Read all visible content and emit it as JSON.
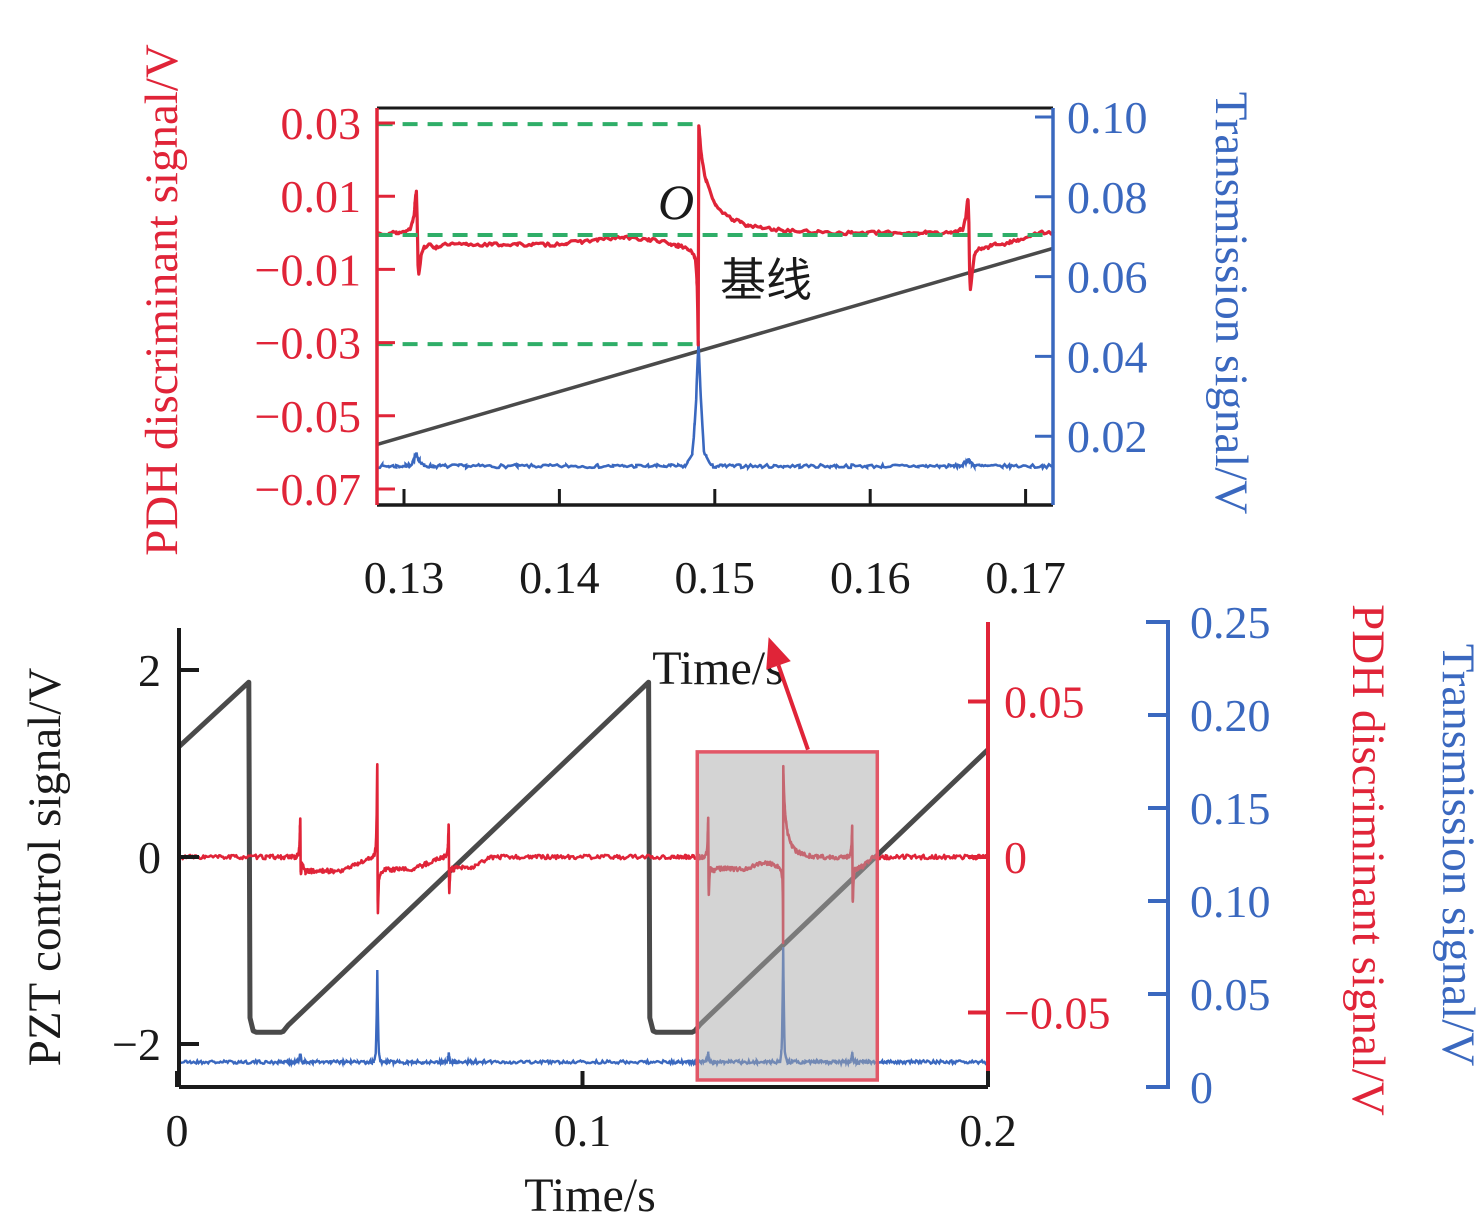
{
  "colors": {
    "red": "#e02438",
    "blue": "#3a68bf",
    "green": "#2fae68",
    "dark": "#1a1a1a",
    "ramp": "#4a4a4a",
    "shade_fill": "#aaaaaa",
    "shade_stroke": "#e25767"
  },
  "chart_data": [
    {
      "id": "zoomed-detail-chart",
      "type": "line",
      "xlabel": "Time/s",
      "xlim": [
        0.1283,
        0.1718
      ],
      "x_ticks": [
        {
          "v": 0.13,
          "label": "0.13"
        },
        {
          "v": 0.14,
          "label": "0.14"
        },
        {
          "v": 0.15,
          "label": "0.15"
        },
        {
          "v": 0.16,
          "label": "0.16"
        },
        {
          "v": 0.17,
          "label": "0.17"
        }
      ],
      "left_axis": {
        "label": "PDH discriminant signal/V",
        "lim": [
          -0.0744,
          0.0341
        ],
        "ticks": [
          {
            "v": 0.03,
            "label": "0.03"
          },
          {
            "v": 0.01,
            "label": "0.01"
          },
          {
            "v": -0.01,
            "label": "−0.01"
          },
          {
            "v": -0.03,
            "label": "−0.03"
          },
          {
            "v": -0.05,
            "label": "−0.05"
          },
          {
            "v": -0.07,
            "label": "−0.07"
          }
        ]
      },
      "right_axis": {
        "label": "Transmission signal/V",
        "lim": [
          0.003,
          0.102
        ],
        "ticks": [
          {
            "v": 0.1,
            "label": "0.10"
          },
          {
            "v": 0.08,
            "label": "0.08"
          },
          {
            "v": 0.06,
            "label": "0.06"
          },
          {
            "v": 0.04,
            "label": "0.04"
          },
          {
            "v": 0.02,
            "label": "0.02"
          }
        ]
      },
      "series": {
        "pdh": {
          "name": "PDH discriminant signal",
          "baseline": 0.0,
          "noise": 0.0005,
          "features": [
            {
              "type": "side",
              "t": 0.1308,
              "up": 0.0115,
              "down": 0.0112,
              "tail": 0.0032,
              "tail_len": 0.016
            },
            {
              "type": "main",
              "t": 0.14895,
              "min": 0.0304,
              "max": 0.0297
            },
            {
              "type": "side",
              "t": 0.1663,
              "up": 0.0093,
              "down": 0.0159,
              "tail": 0.003,
              "tail_len": 0.0045
            }
          ]
        },
        "transmission": {
          "name": "Transmission signal",
          "baseline": 0.0125,
          "noise": 0.00045,
          "peaks": [
            {
              "t": 0.1308,
              "h": 0.003
            },
            {
              "t": 0.14895,
              "h": 0.031
            },
            {
              "t": 0.1663,
              "h": 0.0018
            }
          ]
        },
        "pzt_ramp": {
          "name": "PZT ramp (reference)",
          "points": [
            [
              0.1283,
              -0.0578
            ],
            [
              0.1718,
              -0.0042
            ]
          ]
        }
      },
      "guides": [
        {
          "v": 0.0297,
          "t0": 0.1283,
          "t1": 0.149
        },
        {
          "v": -0.0006,
          "t0": 0.1283,
          "t1": 0.1718
        },
        {
          "v": -0.0304,
          "t0": 0.1283,
          "t1": 0.1491
        }
      ],
      "annotations": [
        {
          "text": "O",
          "role": "zero-crossing-label"
        },
        {
          "text": "基线",
          "role": "baseline-label"
        }
      ]
    },
    {
      "id": "overview-chart",
      "type": "line",
      "xlabel": "Time/s",
      "xlim": [
        0.0005,
        0.2
      ],
      "x_ticks": [
        {
          "v": 0,
          "label": "0"
        },
        {
          "v": 0.1,
          "label": "0.1"
        },
        {
          "v": 0.2,
          "label": "0.2"
        }
      ],
      "left_axis": {
        "label": "PZT control signal/V",
        "lim": [
          -2.46,
          2.45
        ],
        "ticks": [
          {
            "v": 2,
            "label": "2"
          },
          {
            "v": 0,
            "label": "0"
          },
          {
            "v": -2,
            "label": "−2"
          }
        ]
      },
      "right_axis_red": {
        "label": "PDH discriminant signal/V",
        "lim": [
          -0.074,
          0.0756
        ],
        "ticks": [
          {
            "v": 0.05,
            "label": "0.05"
          },
          {
            "v": 0,
            "label": "0"
          },
          {
            "v": -0.05,
            "label": "−0.05"
          }
        ]
      },
      "right_axis_blue": {
        "label": "Transmission signal/V",
        "lim": [
          0,
          0.25
        ],
        "ticks": [
          {
            "v": 0.25,
            "label": "0.25"
          },
          {
            "v": 0.2,
            "label": "0.20"
          },
          {
            "v": 0.15,
            "label": "0.15"
          },
          {
            "v": 0.1,
            "label": "0.10"
          },
          {
            "v": 0.05,
            "label": "0.05"
          },
          {
            "v": 0,
            "label": "0"
          }
        ]
      },
      "series": {
        "pzt": {
          "name": "PZT control signal",
          "points": [
            [
              0.0005,
              1.18
            ],
            [
              0.0177,
              1.87
            ],
            [
              0.018,
              -1.72
            ],
            [
              0.0188,
              -1.86
            ],
            [
              0.0196,
              -1.875
            ],
            [
              0.0256,
              -1.875
            ],
            [
              0.0262,
              -1.865
            ],
            [
              0.0274,
              -1.8
            ],
            [
              0.1163,
              1.87
            ],
            [
              0.1166,
              -1.72
            ],
            [
              0.1174,
              -1.86
            ],
            [
              0.1182,
              -1.875
            ],
            [
              0.127,
              -1.875
            ],
            [
              0.1277,
              -1.86
            ],
            [
              0.129,
              -1.79
            ],
            [
              0.2,
              1.15
            ]
          ]
        },
        "pdh": {
          "name": "PDH discriminant signal",
          "baseline": 0.0,
          "noise": 0.0007,
          "features": [
            {
              "type": "side",
              "t": 0.0304,
              "up": 0.0122,
              "down": 0.0058,
              "tail": 0.0045,
              "tail_len": 0.018
            },
            {
              "type": "side",
              "t": 0.0494,
              "up": 0.0296,
              "down": 0.0187,
              "tail": 0.004,
              "tail_len": 0.016
            },
            {
              "type": "side",
              "t": 0.067,
              "up": 0.0103,
              "down": 0.0116,
              "tail": 0.0035,
              "tail_len": 0.0105
            },
            {
              "type": "side",
              "t": 0.131,
              "up": 0.012,
              "down": 0.012,
              "tail": 0.0038,
              "tail_len": 0.017
            },
            {
              "type": "main",
              "t": 0.1495,
              "min": 0.028,
              "max": 0.029
            },
            {
              "type": "side",
              "t": 0.1665,
              "up": 0.0094,
              "down": 0.015,
              "tail": 0.003,
              "tail_len": 0.005
            }
          ]
        },
        "transmission": {
          "name": "Transmission signal",
          "baseline": 0.0134,
          "noise": 0.0009,
          "peaks": [
            {
              "t": 0.0304,
              "h": 0.005
            },
            {
              "t": 0.0494,
              "h": 0.0495
            },
            {
              "t": 0.067,
              "h": 0.0045
            },
            {
              "t": 0.131,
              "h": 0.005
            },
            {
              "t": 0.1495,
              "h": 0.0613
            },
            {
              "t": 0.1665,
              "h": 0.0045
            }
          ]
        }
      },
      "highlight": {
        "t0": 0.1283,
        "t1": 0.1727,
        "v_top": 0.0338,
        "v_bottom": -0.0717
      },
      "arrow": {
        "from_t": 0.1556,
        "from_v": 0.0345,
        "to_t": 0.1459,
        "to_v": 0.0707
      }
    }
  ]
}
